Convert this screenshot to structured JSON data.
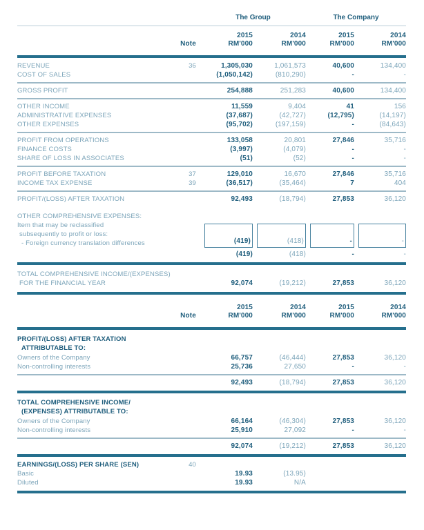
{
  "document": {
    "type": "financial-statement-table",
    "currency_unit": "RM'000"
  },
  "colors": {
    "text_dark": "#1e5d7c",
    "text_light": "#7ba4b9",
    "rule_thick": "#256f8d",
    "rule_medium": "#9db9c7",
    "rule_thin": "#b8ccd7"
  },
  "header": {
    "group": "The Group",
    "company": "The Company",
    "note": "Note",
    "years": [
      "2015",
      "2014",
      "2015",
      "2014"
    ],
    "unit": "RM'000"
  },
  "table": {
    "blocks": [
      {
        "t": "groupheader"
      },
      {
        "t": "rule",
        "w": "thin"
      },
      {
        "t": "yearheader"
      },
      {
        "t": "rule",
        "w": "thick"
      },
      {
        "t": "row",
        "label": "REVENUE",
        "note": "36",
        "v": [
          "1,305,030",
          "1,061,573",
          "40,600",
          "134,400"
        ]
      },
      {
        "t": "row",
        "label": "COST OF SALES",
        "note": "",
        "v": [
          "(1,050,142)",
          "(810,290)",
          "-",
          "-"
        ]
      },
      {
        "t": "rule",
        "w": "med"
      },
      {
        "t": "row",
        "label": "GROSS PROFIT",
        "note": "",
        "v": [
          "254,888",
          "251,283",
          "40,600",
          "134,400"
        ]
      },
      {
        "t": "rule",
        "w": "med"
      },
      {
        "t": "row",
        "label": "OTHER INCOME",
        "note": "",
        "v": [
          "11,559",
          "9,404",
          "41",
          "156"
        ]
      },
      {
        "t": "row",
        "label": "ADMINISTRATIVE EXPENSES",
        "note": "",
        "v": [
          "(37,687)",
          "(42,727)",
          "(12,795)",
          "(14,197)"
        ]
      },
      {
        "t": "row",
        "label": "OTHER EXPENSES",
        "note": "",
        "v": [
          "(95,702)",
          "(197,159)",
          "-",
          "(84,643)"
        ]
      },
      {
        "t": "rule",
        "w": "med"
      },
      {
        "t": "row",
        "label": "PROFIT FROM OPERATIONS",
        "note": "",
        "v": [
          "133,058",
          "20,801",
          "27,846",
          "35,716"
        ]
      },
      {
        "t": "row",
        "label": "FINANCE COSTS",
        "note": "",
        "v": [
          "(3,997)",
          "(4,079)",
          "-",
          "-"
        ]
      },
      {
        "t": "row",
        "label": "SHARE OF LOSS IN ASSOCIATES",
        "note": "",
        "v": [
          "(51)",
          "(52)",
          "-",
          "-"
        ]
      },
      {
        "t": "rule",
        "w": "med"
      },
      {
        "t": "row",
        "label": "PROFIT BEFORE TAXATION",
        "note": "37",
        "v": [
          "129,010",
          "16,670",
          "27,846",
          "35,716"
        ]
      },
      {
        "t": "row",
        "label": "INCOME TAX EXPENSE",
        "note": "39",
        "v": [
          "(36,517)",
          "(35,464)",
          "7",
          "404"
        ]
      },
      {
        "t": "rule",
        "w": "med"
      },
      {
        "t": "row",
        "label": "PROFIT/(LOSS) AFTER TAXATION",
        "note": "",
        "v": [
          "92,493",
          "(18,794)",
          "27,853",
          "36,120"
        ]
      },
      {
        "t": "gap"
      },
      {
        "t": "text",
        "label": "OTHER COMPREHENSIVE EXPENSES:"
      },
      {
        "t": "boxrow",
        "lines": [
          "Item that may be reclassified",
          "subsequently to profit or loss:",
          "- Foreign currency translation differences"
        ],
        "v": [
          "(419)",
          "(418)",
          "-",
          "-"
        ]
      },
      {
        "t": "row",
        "label": "",
        "note": "",
        "v": [
          "(419)",
          "(418)",
          "-",
          "-"
        ],
        "cls": "subtotal"
      },
      {
        "t": "rule",
        "w": "thick"
      },
      {
        "t": "row2",
        "lines": [
          "TOTAL COMPREHENSIVE INCOME/(EXPENSES)",
          "FOR THE FINANCIAL YEAR"
        ],
        "v": [
          "92,074",
          "(19,212)",
          "27,853",
          "36,120"
        ]
      },
      {
        "t": "rule",
        "w": "thick"
      },
      {
        "t": "yearheader"
      },
      {
        "t": "rule",
        "w": "thick"
      },
      {
        "t": "heading",
        "lines": [
          "PROFIT/(LOSS) AFTER TAXATION",
          "ATTRIBUTABLE TO:"
        ]
      },
      {
        "t": "row",
        "label": "Owners of the Company",
        "note": "",
        "v": [
          "66,757",
          "(46,444)",
          "27,853",
          "36,120"
        ]
      },
      {
        "t": "row",
        "label": "Non-controlling interests",
        "note": "",
        "v": [
          "25,736",
          "27,650",
          "-",
          "-"
        ]
      },
      {
        "t": "rule",
        "w": "med"
      },
      {
        "t": "row",
        "label": "",
        "note": "",
        "v": [
          "92,493",
          "(18,794)",
          "27,853",
          "36,120"
        ]
      },
      {
        "t": "rule",
        "w": "thick"
      },
      {
        "t": "heading",
        "lines": [
          "TOTAL COMPREHENSIVE INCOME/",
          "(EXPENSES) ATTRIBUTABLE TO:"
        ]
      },
      {
        "t": "row",
        "label": "Owners of the Company",
        "note": "",
        "v": [
          "66,164",
          "(46,304)",
          "27,853",
          "36,120"
        ]
      },
      {
        "t": "row",
        "label": "Non-controlling interests",
        "note": "",
        "v": [
          "25,910",
          "27,092",
          "-",
          "-"
        ]
      },
      {
        "t": "rule",
        "w": "med"
      },
      {
        "t": "row",
        "label": "",
        "note": "",
        "v": [
          "92,074",
          "(19,212)",
          "27,853",
          "36,120"
        ]
      },
      {
        "t": "rule",
        "w": "thick"
      },
      {
        "t": "row",
        "label": "EARNINGS/(LOSS) PER SHARE (SEN)",
        "note": "40",
        "v": [
          "",
          "",
          "",
          ""
        ],
        "bold": true
      },
      {
        "t": "row",
        "label": "Basic",
        "note": "",
        "v": [
          "19.93",
          "(13.95)",
          "",
          ""
        ]
      },
      {
        "t": "row",
        "label": "Diluted",
        "note": "",
        "v": [
          "19.93",
          "N/A",
          "",
          ""
        ]
      },
      {
        "t": "rule",
        "w": "thick"
      }
    ]
  }
}
